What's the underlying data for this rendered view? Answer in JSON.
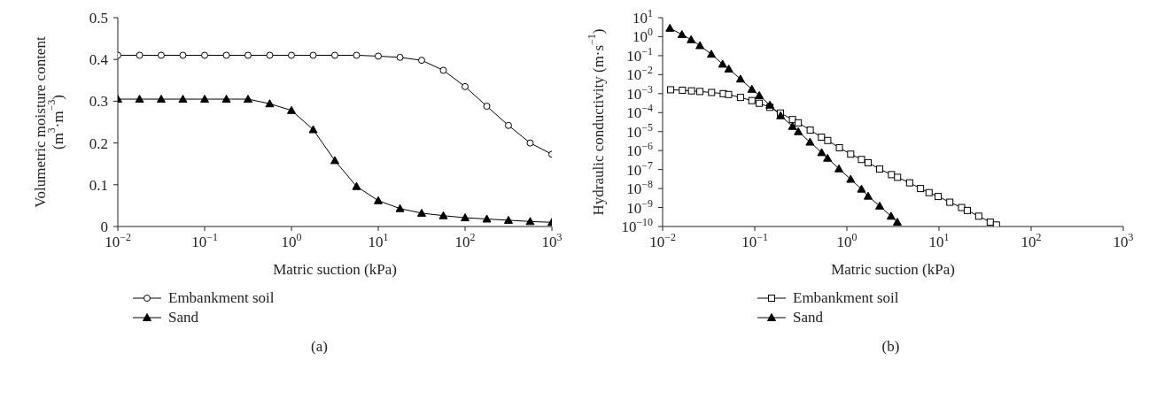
{
  "chart_data": [
    {
      "type": "line",
      "xlabel": "Matric suction (kPa)",
      "ylabel": "Volumetric moisture content\n(m$^{3}$·m$^{−3}$)",
      "log": "x",
      "xlim": [
        0.01,
        1000
      ],
      "xticks": [
        {
          "value": 0.01,
          "label": "10$^{−2}$"
        },
        {
          "value": 0.1,
          "label": "10$^{−1}$"
        },
        {
          "value": 1,
          "label": "10$^{0}$"
        },
        {
          "value": 10,
          "label": "10$^{1}$"
        },
        {
          "value": 100,
          "label": "10$^{2}$"
        },
        {
          "value": 1000,
          "label": "10$^{3}$"
        }
      ],
      "ylim": [
        0,
        0.5
      ],
      "yticks": [
        0,
        0.1,
        0.2,
        0.3,
        0.4,
        0.5
      ],
      "legend": "bottom",
      "annotations": [
        "(a)"
      ],
      "x": [
        0.01,
        0.0178,
        0.0316,
        0.0562,
        0.1,
        0.178,
        0.316,
        0.562,
        1,
        1.78,
        3.16,
        5.62,
        10,
        17.8,
        31.6,
        56.2,
        100,
        178,
        316,
        562,
        1000
      ],
      "series": [
        {
          "name": "Embankment soil",
          "color": "#000000",
          "marker": "circle",
          "values": [
            0.41,
            0.41,
            0.41,
            0.41,
            0.41,
            0.41,
            0.41,
            0.41,
            0.41,
            0.41,
            0.41,
            0.41,
            0.408,
            0.405,
            0.398,
            0.374,
            0.335,
            0.288,
            0.242,
            0.2,
            0.173
          ]
        },
        {
          "name": "Sand",
          "color": "#000000",
          "marker": "triangle",
          "values": [
            0.305,
            0.305,
            0.305,
            0.305,
            0.305,
            0.305,
            0.305,
            0.294,
            0.278,
            0.232,
            0.158,
            0.096,
            0.062,
            0.043,
            0.032,
            0.026,
            0.021,
            0.018,
            0.015,
            0.012,
            0.01
          ]
        }
      ]
    },
    {
      "type": "line",
      "xlabel": "Matric suction (kPa)",
      "ylabel": "Hydraulic conductivity (m·s$^{−1}$)",
      "log": "xy",
      "xlim": [
        0.01,
        1000
      ],
      "xticks": [
        {
          "value": 0.01,
          "label": "10$^{−2}$"
        },
        {
          "value": 0.1,
          "label": "10$^{−1}$"
        },
        {
          "value": 1,
          "label": "10$^{0}$"
        },
        {
          "value": 10,
          "label": "10$^{1}$"
        },
        {
          "value": 100,
          "label": "10$^{2}$"
        },
        {
          "value": 1000,
          "label": "10$^{3}$"
        }
      ],
      "ylim": [
        1e-10,
        10
      ],
      "yticks": [
        {
          "value": 1e-10,
          "label": "10$^{−10}$"
        },
        {
          "value": 1e-09,
          "label": "10$^{−9}$"
        },
        {
          "value": 1e-08,
          "label": "10$^{−8}$"
        },
        {
          "value": 1e-07,
          "label": "10$^{−7}$"
        },
        {
          "value": 1e-06,
          "label": "10$^{−6}$"
        },
        {
          "value": 1e-05,
          "label": "10$^{−5}$"
        },
        {
          "value": 0.0001,
          "label": "10$^{−4}$"
        },
        {
          "value": 0.001,
          "label": "10$^{−3}$"
        },
        {
          "value": 0.01,
          "label": "10$^{−2}$"
        },
        {
          "value": 0.1,
          "label": "10$^{−1}$"
        },
        {
          "value": 1,
          "label": "10$^{0}$"
        },
        {
          "value": 10,
          "label": "10$^{1}$"
        }
      ],
      "legend": "bottom",
      "annotations": [
        "(b)"
      ],
      "series": [
        {
          "name": "Embankment soil",
          "color": "#000000",
          "marker": "square",
          "x": [
            0.0122,
            0.0164,
            0.0206,
            0.0254,
            0.034,
            0.0455,
            0.052,
            0.07,
            0.093,
            0.112,
            0.146,
            0.19,
            0.257,
            0.297,
            0.4,
            0.53,
            0.62,
            0.83,
            1.1,
            1.44,
            1.7,
            2.27,
            3.05,
            3.55,
            4.8,
            6.3,
            7.8,
            9.8,
            13.1,
            17.6,
            20.3,
            27,
            36,
            42
          ],
          "values": [
            0.0016,
            0.0015,
            0.0014,
            0.0013,
            0.00115,
            0.001,
            0.0009,
            0.00063,
            0.00043,
            0.00031,
            0.00019,
            9.5e-05,
            4.3e-05,
            2.9e-05,
            1.2e-05,
            5.1e-06,
            3.4e-06,
            1.4e-06,
            6.5e-07,
            3.4e-07,
            2.3e-07,
            1.06e-07,
            5.4e-08,
            3.9e-08,
            2e-08,
            1e-08,
            6.1e-09,
            3.8e-09,
            1.9e-09,
            1e-09,
            7e-10,
            3.5e-10,
            1.7e-10,
            1.2e-10
          ]
        },
        {
          "name": "Sand",
          "color": "#000000",
          "marker": "triangle",
          "x": [
            0.012,
            0.0162,
            0.0204,
            0.0254,
            0.0338,
            0.0448,
            0.0523,
            0.07,
            0.093,
            0.112,
            0.146,
            0.191,
            0.257,
            0.297,
            0.398,
            0.532,
            0.617,
            0.82,
            1.1,
            1.44,
            1.7,
            2.27,
            3.02,
            3.53
          ],
          "values": [
            2.8,
            1.3,
            0.7,
            0.34,
            0.12,
            0.036,
            0.02,
            0.0059,
            0.0017,
            0.0008,
            0.00025,
            6.9e-05,
            1.9e-05,
            1e-05,
            2.8e-06,
            7.9e-07,
            4e-07,
            1.1e-07,
            3.1e-08,
            9.4e-09,
            4e-09,
            1.2e-09,
            3.5e-10,
            1.7e-10
          ]
        }
      ]
    }
  ]
}
